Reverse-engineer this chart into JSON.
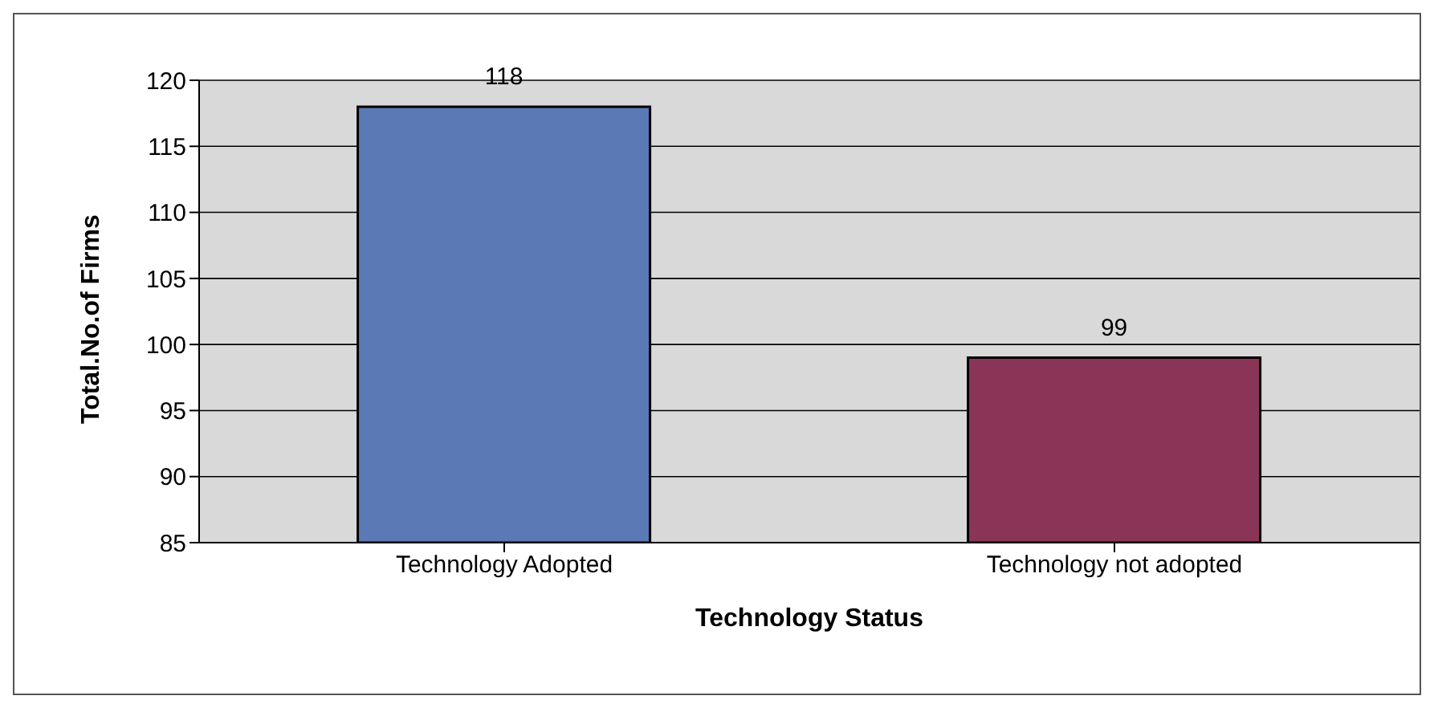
{
  "chart_data": {
    "type": "bar",
    "xlabel": "Technology Status",
    "ylabel": "Total.No.of Firms",
    "categories": [
      "Technology Adopted",
      "Technology not adopted"
    ],
    "values": [
      118,
      99
    ],
    "colors": [
      "#5b79b5",
      "#8a3557"
    ],
    "ylim": [
      85,
      120
    ],
    "yticks": [
      85,
      90,
      95,
      100,
      105,
      110,
      115,
      120
    ],
    "grid": "y",
    "data_labels": true
  }
}
